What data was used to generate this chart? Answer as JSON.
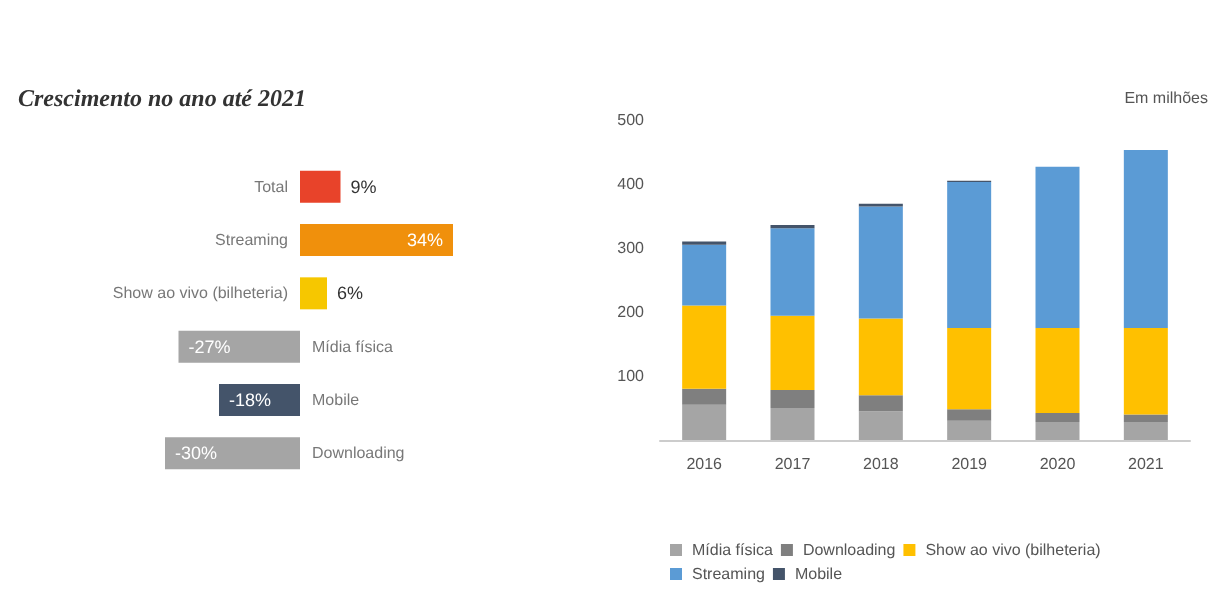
{
  "chart_data": [
    {
      "type": "bar",
      "orientation": "horizontal",
      "title": "Crescimento no ano até 2021",
      "categories": [
        "Total",
        "Streaming",
        "Show ao vivo (bilheteria)",
        "Mídia física",
        "Mobile",
        "Downloading"
      ],
      "values": [
        9,
        34,
        6,
        -27,
        -18,
        -30
      ],
      "value_labels": [
        "9%",
        "34%",
        "6%",
        "-27%",
        "-18%",
        "-30%"
      ],
      "colors": [
        "#e8432a",
        "#f0900c",
        "#f6c700",
        "#a5a5a5",
        "#44546a",
        "#a5a5a5"
      ]
    },
    {
      "type": "bar",
      "stacked": true,
      "categories": [
        "2016",
        "2017",
        "2018",
        "2019",
        "2020",
        "2021"
      ],
      "ylim": [
        0,
        500
      ],
      "yticks": [
        100,
        200,
        300,
        400,
        500
      ],
      "grid": false,
      "legend": "bottom",
      "annotations": [
        "Em milhões"
      ],
      "series": [
        {
          "name": "Mídia física",
          "color": "#a5a5a5",
          "values": [
            55,
            50,
            45,
            30,
            28,
            28
          ]
        },
        {
          "name": "Downloading",
          "color": "#7f7f7f",
          "values": [
            25,
            28,
            25,
            18,
            14,
            12
          ]
        },
        {
          "name": "Show ao vivo (bilheteria)",
          "color": "#ffc000",
          "values": [
            130,
            116,
            120,
            127,
            133,
            135
          ]
        },
        {
          "name": "Streaming",
          "color": "#5b9bd5",
          "values": [
            95,
            137,
            175,
            228,
            252,
            278
          ]
        },
        {
          "name": "Mobile",
          "color": "#44546a",
          "values": [
            5,
            5,
            4,
            2,
            0,
            0
          ]
        }
      ]
    }
  ]
}
